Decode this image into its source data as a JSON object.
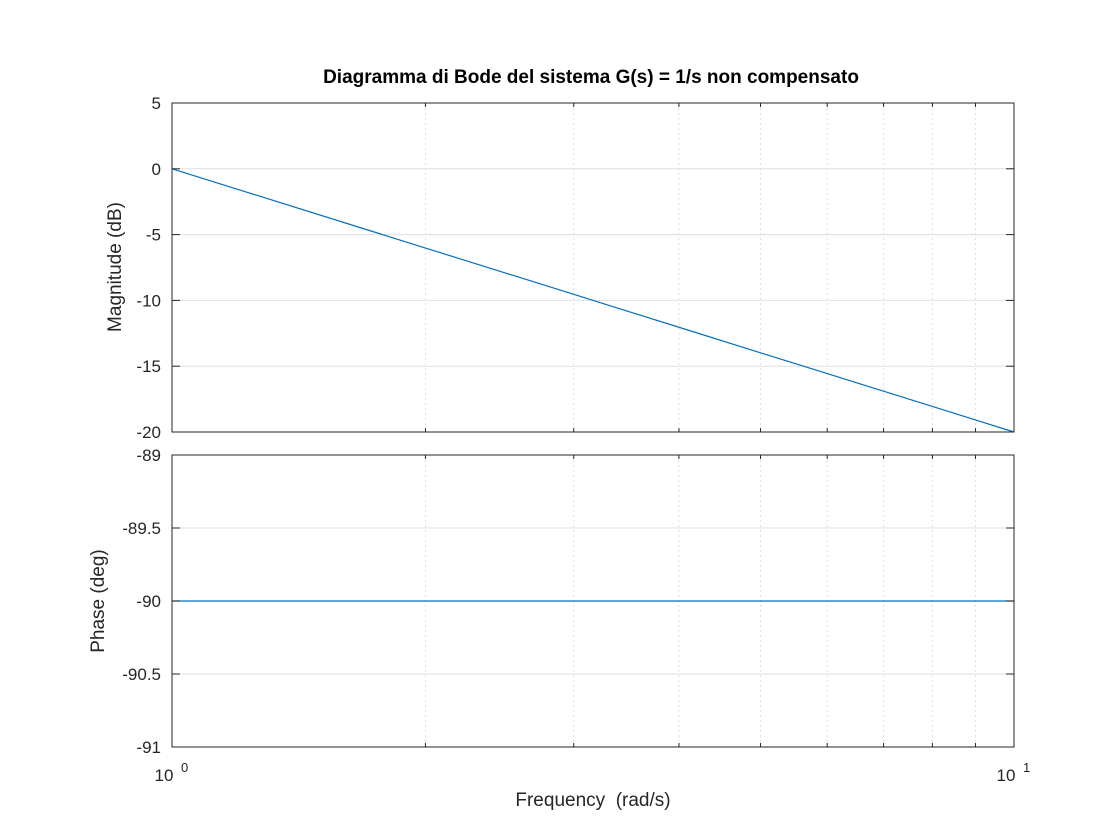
{
  "chart_data": [
    {
      "type": "line",
      "title": "Diagramma di Bode del sistema G(s) = 1/s non compensato",
      "xlabel": "",
      "ylabel": "Magnitude (dB)",
      "xscale": "log",
      "xlim": [
        1,
        10
      ],
      "ylim": [
        -20,
        5
      ],
      "yticks": [
        "5",
        "0",
        "-5",
        "-10",
        "-15",
        "-20"
      ],
      "grid": true,
      "color": "#0072BD",
      "series": [
        {
          "x": [
            1,
            2,
            3,
            4,
            5,
            6,
            7,
            8,
            9,
            10
          ],
          "y": [
            0,
            -6.02,
            -9.54,
            -12.04,
            -13.98,
            -15.56,
            -16.9,
            -18.06,
            -19.08,
            -20
          ]
        }
      ]
    },
    {
      "type": "line",
      "title": "",
      "xlabel": "Frequency  (rad/s)",
      "ylabel": "Phase (deg)",
      "xscale": "log",
      "xlim": [
        1,
        10
      ],
      "ylim": [
        -91,
        -89
      ],
      "yticks": [
        "-89",
        "-89.5",
        "-90",
        "-90.5",
        "-91"
      ],
      "xtick_base": "10",
      "xtick_exponents": [
        "0",
        "1"
      ],
      "grid": true,
      "color": "#0072BD",
      "series": [
        {
          "x": [
            1,
            10
          ],
          "y": [
            -90,
            -90
          ]
        }
      ]
    }
  ]
}
